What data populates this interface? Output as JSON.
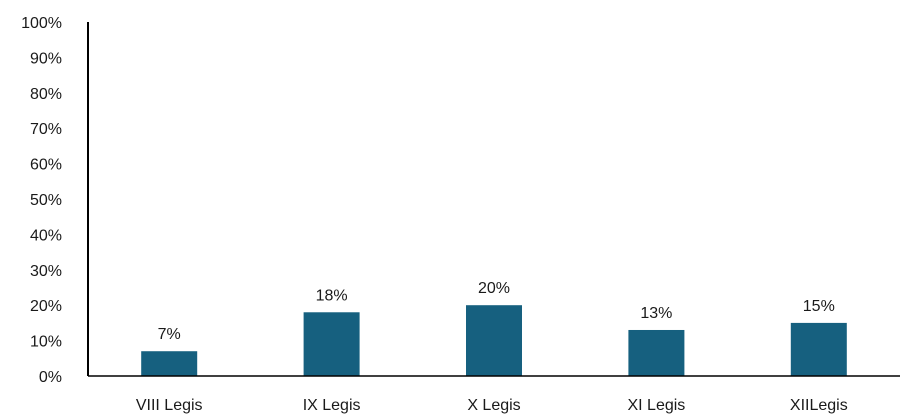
{
  "chart_data": {
    "type": "bar",
    "categories": [
      "VIII Legis",
      "IX Legis",
      "X Legis",
      "XI Legis",
      "XIILegis"
    ],
    "values": [
      7,
      18,
      20,
      13,
      15
    ],
    "data_labels": [
      "7%",
      "18%",
      "20%",
      "13%",
      "15%"
    ],
    "ylim": [
      0,
      100
    ],
    "y_ticks": [
      0,
      10,
      20,
      30,
      40,
      50,
      60,
      70,
      80,
      90,
      100
    ],
    "y_tick_labels": [
      "0%",
      "10%",
      "20%",
      "30%",
      "40%",
      "50%",
      "60%",
      "70%",
      "80%",
      "90%",
      "100%"
    ],
    "title": "",
    "xlabel": "",
    "ylabel": "",
    "grid": false,
    "legend": "none",
    "colors": {
      "bar": "#16607f",
      "axis": "#000000",
      "text": "#1a1a1a"
    }
  }
}
